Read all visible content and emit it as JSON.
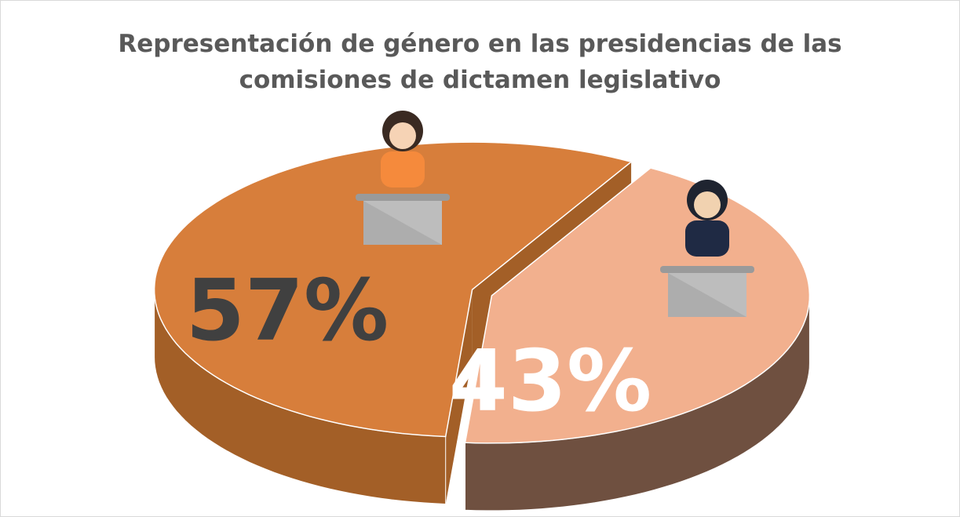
{
  "chart_data": {
    "type": "pie3d",
    "title": "Representación de género en las presidencias de las comisiones de dictamen legislativo",
    "values": [
      57,
      43
    ],
    "value_labels": [
      "57%",
      "43%"
    ],
    "colors": [
      "#D77E3B",
      "#F2B08E"
    ],
    "side_colors": [
      "#A35F27",
      "#6F5040"
    ],
    "label_colors": [
      "#404040",
      "#FFFFFF"
    ]
  }
}
